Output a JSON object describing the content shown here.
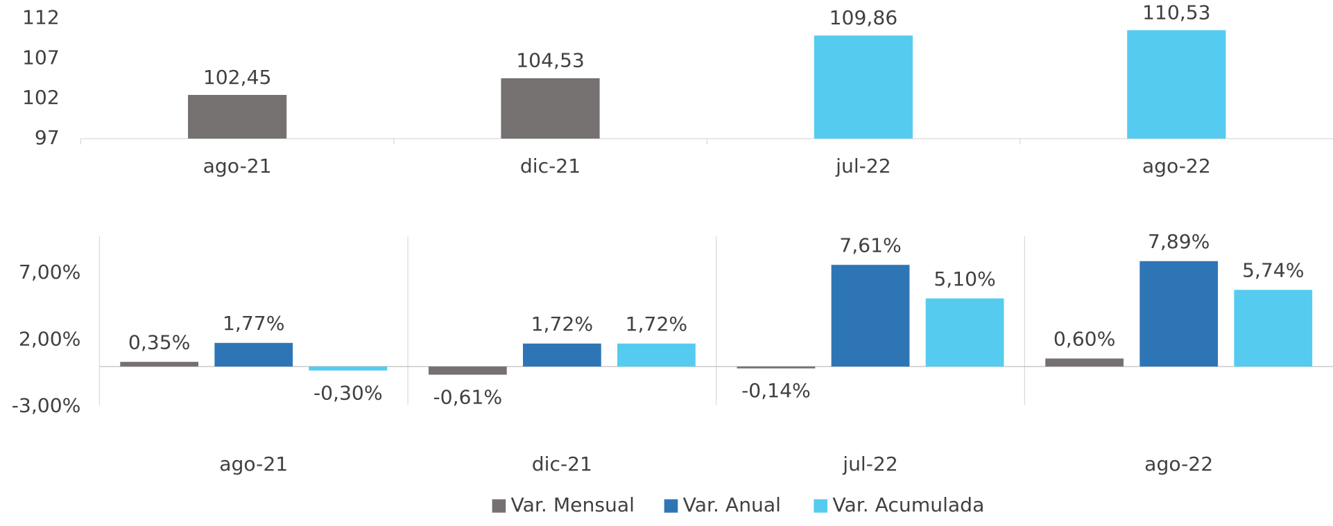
{
  "chart_data": [
    {
      "type": "bar",
      "categories": [
        "ago-21",
        "dic-21",
        "jul-22",
        "ago-22"
      ],
      "values": [
        102.45,
        104.53,
        109.86,
        110.53
      ],
      "value_labels": [
        "102,45",
        "104,53",
        "109,86",
        "110,53"
      ],
      "colors": [
        "#767171",
        "#767171",
        "#56cbf0",
        "#56cbf0"
      ],
      "ylim": [
        97,
        112
      ],
      "yticks": [
        97,
        102,
        107,
        112
      ],
      "grid": false
    },
    {
      "type": "grouped_bar",
      "categories": [
        "ago-21",
        "dic-21",
        "jul-22",
        "ago-22"
      ],
      "series": [
        {
          "name": "Var. Mensual",
          "color": "#767171",
          "values": [
            0.35,
            -0.61,
            -0.14,
            0.6
          ],
          "value_labels": [
            "0,35%",
            "-0,61%",
            "-0,14%",
            "0,60%"
          ]
        },
        {
          "name": "Var. Anual",
          "color": "#2e75b6",
          "values": [
            1.77,
            1.72,
            7.61,
            7.89
          ],
          "value_labels": [
            "1,77%",
            "1,72%",
            "7,61%",
            "7,89%"
          ]
        },
        {
          "name": "Var. Acumulada",
          "color": "#56cbf0",
          "values": [
            -0.3,
            1.72,
            5.1,
            5.74
          ],
          "value_labels": [
            "-0,30%",
            "1,72%",
            "5,10%",
            "5,74%"
          ]
        }
      ],
      "ylim": [
        -3,
        9.75
      ],
      "yticks": [
        {
          "value": -3,
          "label": "-3,00%"
        },
        {
          "value": 2,
          "label": "2,00%"
        },
        {
          "value": 7,
          "label": "7,00%"
        }
      ],
      "legend": "bottom",
      "grid": false
    }
  ]
}
